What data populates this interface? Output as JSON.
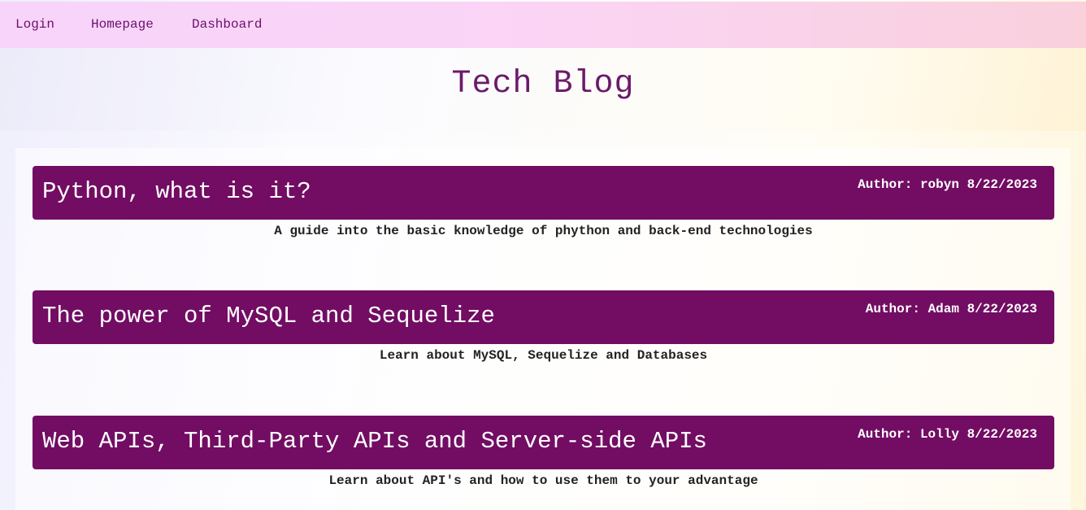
{
  "nav": {
    "items": [
      {
        "label": "Login"
      },
      {
        "label": "Homepage"
      },
      {
        "label": "Dashboard"
      }
    ]
  },
  "header": {
    "title": "Tech Blog"
  },
  "posts": [
    {
      "title": "Python, what is it?",
      "author_label": "Author:",
      "author": "robyn",
      "date": "8/22/2023",
      "description": "A guide into the basic knowledge of phython and back-end technologies"
    },
    {
      "title": "The power of MySQL and Sequelize",
      "author_label": "Author:",
      "author": "Adam",
      "date": "8/22/2023",
      "description": "Learn about MySQL, Sequelize and Databases"
    },
    {
      "title": "Web APIs, Third-Party APIs and Server-side APIs",
      "author_label": "Author:",
      "author": "Lolly",
      "date": "8/22/2023",
      "description": "Learn about API's and how to use them to your advantage"
    }
  ],
  "colors": {
    "post_header_bg": "#720d63",
    "title_color": "#6b1a6b",
    "nav_link_color": "#6b0f6b"
  }
}
